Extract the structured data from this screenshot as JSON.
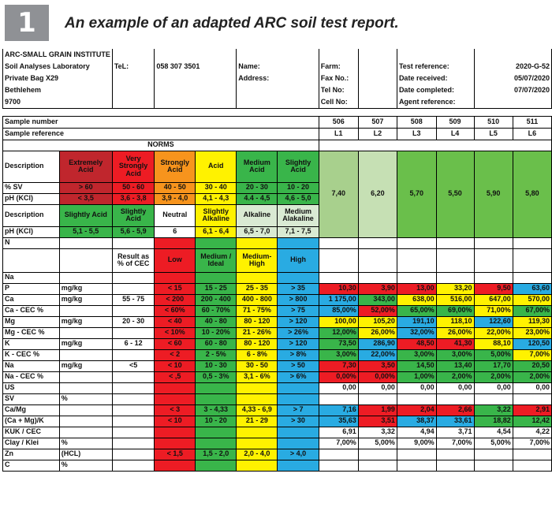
{
  "header": {
    "number": "1",
    "title": "An example of an adapted ARC soil test report."
  },
  "info": {
    "rows": [
      [
        "ARC-SMALL GRAIN INSTITUTE",
        "",
        "",
        "",
        "",
        "",
        "",
        ""
      ],
      [
        "Soil Analyses Laboratory",
        "TeL:",
        "058 307 3501",
        "Name:",
        "Farm:",
        "",
        "Test reference:",
        "2020-G-52"
      ],
      [
        "Private Bag X29",
        "",
        "",
        "Address:",
        "Fax No.:",
        "",
        "Date received:",
        "05/07/2020"
      ],
      [
        "Bethlehem",
        "",
        "",
        "",
        "Tel No:",
        "",
        "Date completed:",
        "07/07/2020"
      ],
      [
        "9700",
        "",
        "",
        "",
        "Cell No:",
        "",
        "Agent reference:",
        ""
      ]
    ]
  },
  "samples": {
    "number_label": "Sample number",
    "reference_label": "Sample reference",
    "numbers": [
      "506",
      "507",
      "508",
      "509",
      "510",
      "511"
    ],
    "references": [
      "L1",
      "L2",
      "L3",
      "L4",
      "L5",
      "L6"
    ],
    "ph_values": [
      "7,40",
      "6,20",
      "5,70",
      "5,50",
      "5,90",
      "5,80"
    ]
  },
  "norms": {
    "title": "NORMS",
    "description_label": "Description",
    "sv_label": "% SV",
    "ph_label": "pH (KCl)",
    "acid_desc": [
      "Extremely Acid",
      "Very Strongly Acid",
      "Strongly Acid",
      "Acid",
      "Medium Acid",
      "Slightly Acid"
    ],
    "acid_sv": [
      "> 60",
      "50 - 60",
      "40 - 50",
      "30 - 40",
      "20 - 30",
      "10 - 20"
    ],
    "acid_ph": [
      "< 3,5",
      "3,6 - 3,8",
      "3,9 - 4,0",
      "4,1 - 4,3",
      "4.4 - 4,5",
      "4,6 - 5,0"
    ],
    "alk_desc": [
      "Slightly Acid",
      "Slightly Acid",
      "Neutral",
      "Slightly Alkaline",
      "Alkaline",
      "Medium Alakaline"
    ],
    "alk_ph": [
      "5,1 - 5,5",
      "5,6 - 5,9",
      "6",
      "6,1 - 6,4",
      "6,5 - 7,0",
      "7,1 - 7,5"
    ]
  },
  "nutrients": {
    "result_header": "Result as % of CEC",
    "bands": [
      "Low",
      "Medium / Ideal",
      "Medium-High",
      "High"
    ],
    "rows": [
      {
        "name": "N",
        "unit": "",
        "cec": "",
        "low": "",
        "med": "",
        "mhigh": "",
        "high": "",
        "values": [
          "",
          "",
          "",
          "",
          "",
          ""
        ],
        "colors": [
          "",
          "",
          "",
          "",
          "",
          ""
        ]
      },
      {
        "name": "Na",
        "unit": "",
        "cec": "",
        "low": "",
        "med": "",
        "mhigh": "",
        "high": "",
        "values": [
          "",
          "",
          "",
          "",
          "",
          ""
        ],
        "colors": [
          "",
          "",
          "",
          "",
          "",
          ""
        ]
      },
      {
        "name": "P",
        "unit": "mg/kg",
        "cec": "",
        "low": "< 15",
        "med": "15 - 25",
        "mhigh": "25 - 35",
        "high": "> 35",
        "values": [
          "10,30",
          "3,90",
          "13,00",
          "33,20",
          "9,50",
          "63,60"
        ],
        "colors": [
          "red",
          "red",
          "red",
          "yel",
          "red",
          "blu"
        ]
      },
      {
        "name": "Ca",
        "unit": "mg/kg",
        "cec": "55 - 75",
        "low": "< 200",
        "med": "200 - 400",
        "mhigh": "400 - 800",
        "high": "> 800",
        "values": [
          "1 175,00",
          "343,00",
          "638,00",
          "516,00",
          "647,00",
          "570,00"
        ],
        "colors": [
          "blu",
          "grn",
          "yel",
          "yel",
          "yel",
          "yel"
        ]
      },
      {
        "name": "Ca - CEC %",
        "unit": "",
        "cec": "",
        "low": "< 60%",
        "med": "60 - 70%",
        "mhigh": "71 - 75%",
        "high": "> 75",
        "values": [
          "85,00%",
          "52,00%",
          "65,00%",
          "69,00%",
          "71,00%",
          "67,00%"
        ],
        "colors": [
          "blu",
          "red",
          "grn",
          "grn",
          "yel",
          "grn"
        ]
      },
      {
        "name": "Mg",
        "unit": "mg/kg",
        "cec": "20 - 30",
        "low": "< 40",
        "med": "40 - 80",
        "mhigh": "80 - 120",
        "high": "> 120",
        "values": [
          "100,00",
          "105,20",
          "191,10",
          "118,10",
          "122,60",
          "119,30"
        ],
        "colors": [
          "yel",
          "yel",
          "blu",
          "yel",
          "blu",
          "yel"
        ]
      },
      {
        "name": "Mg - CEC %",
        "unit": "",
        "cec": "",
        "low": "< 10%",
        "med": "10 - 20%",
        "mhigh": "21 - 26%",
        "high": "> 26%",
        "values": [
          "12,00%",
          "26,00%",
          "32,00%",
          "26,00%",
          "22,00%",
          "23,00%"
        ],
        "colors": [
          "grn",
          "yel",
          "blu",
          "yel",
          "yel",
          "yel"
        ]
      },
      {
        "name": "K",
        "unit": "mg/kg",
        "cec": "6 - 12",
        "low": "< 60",
        "med": "60 - 80",
        "mhigh": "80 - 120",
        "high": "> 120",
        "values": [
          "73,50",
          "286,90",
          "48,50",
          "41,30",
          "88,10",
          "120,50"
        ],
        "colors": [
          "grn",
          "blu",
          "red",
          "red",
          "yel",
          "blu"
        ]
      },
      {
        "name": "K - CEC %",
        "unit": "",
        "cec": "",
        "low": "< 2",
        "med": "2 - 5%",
        "mhigh": "6 - 8%",
        "high": "> 8%",
        "values": [
          "3,00%",
          "22,00%",
          "3,00%",
          "3,00%",
          "5,00%",
          "7,00%"
        ],
        "colors": [
          "grn",
          "blu",
          "grn",
          "grn",
          "grn",
          "yel"
        ]
      },
      {
        "name": "Na",
        "unit": "mg/kg",
        "cec": "<5",
        "low": "< 10",
        "med": "10 - 30",
        "mhigh": "30 - 50",
        "high": "> 50",
        "values": [
          "7,30",
          "3,50",
          "14,50",
          "13,40",
          "17,70",
          "20,50"
        ],
        "colors": [
          "red",
          "red",
          "grn",
          "grn",
          "grn",
          "grn"
        ]
      },
      {
        "name": "Na - CEC %",
        "unit": "",
        "cec": "",
        "low": "< ,5",
        "med": "0,5 - 3%",
        "mhigh": "3,1 - 6%",
        "high": "> 6%",
        "values": [
          "0,00%",
          "0,00%",
          "1,00%",
          "2,00%",
          "2,00%",
          "2,00%"
        ],
        "colors": [
          "red",
          "red",
          "grn",
          "grn",
          "grn",
          "grn"
        ]
      },
      {
        "name": "US",
        "unit": "",
        "cec": "",
        "low": "",
        "med": "",
        "mhigh": "",
        "high": "",
        "values": [
          "0,00",
          "0,00",
          "0,00",
          "0,00",
          "0,00",
          "0,00"
        ],
        "colors": [
          "",
          "",
          "",
          "",
          "",
          ""
        ]
      },
      {
        "name": "SV",
        "unit": "%",
        "cec": "",
        "low": "",
        "med": "",
        "mhigh": "",
        "high": "",
        "values": [
          "",
          "",
          "",
          "",
          "",
          ""
        ],
        "colors": [
          "",
          "",
          "",
          "",
          "",
          ""
        ]
      },
      {
        "name": "Ca/Mg",
        "unit": "",
        "cec": "",
        "low": "< 3",
        "med": "3 - 4,33",
        "mhigh": "4,33 - 6,9",
        "high": "> 7",
        "values": [
          "7,16",
          "1,99",
          "2,04",
          "2,66",
          "3,22",
          "2,91"
        ],
        "colors": [
          "blu",
          "red",
          "red",
          "red",
          "grn",
          "red"
        ]
      },
      {
        "name": "(Ca + Mg)/K",
        "unit": "",
        "cec": "",
        "low": "< 10",
        "med": "10 - 20",
        "mhigh": "21 - 29",
        "high": "> 30",
        "values": [
          "35,63",
          "3,51",
          "38,37",
          "33,61",
          "18,82",
          "12,42"
        ],
        "colors": [
          "blu",
          "red",
          "blu",
          "blu",
          "grn",
          "grn"
        ]
      },
      {
        "name": "KUK / CEC",
        "unit": "",
        "cec": "",
        "low": "",
        "med": "",
        "mhigh": "",
        "high": "",
        "values": [
          "6,91",
          "3,32",
          "4,94",
          "3,71",
          "4,54",
          "4,22"
        ],
        "colors": [
          "",
          "",
          "",
          "",
          "",
          ""
        ]
      },
      {
        "name": "Clay / Klei",
        "unit": "%",
        "cec": "",
        "low": "",
        "med": "",
        "mhigh": "",
        "high": "",
        "values": [
          "7,00%",
          "5,00%",
          "9,00%",
          "7,00%",
          "5,00%",
          "7,00%"
        ],
        "colors": [
          "",
          "",
          "",
          "",
          "",
          ""
        ]
      },
      {
        "name": "Zn",
        "unit": "(HCL)",
        "cec": "",
        "low": "< 1,5",
        "med": "1,5 - 2,0",
        "mhigh": "2,0 - 4,0",
        "high": "> 4,0",
        "values": [
          "",
          "",
          "",
          "",
          "",
          ""
        ],
        "colors": [
          "",
          "",
          "",
          "",
          "",
          ""
        ]
      },
      {
        "name": "C",
        "unit": "%",
        "cec": "",
        "low": "",
        "med": "",
        "mhigh": "",
        "high": "",
        "values": [
          "",
          "",
          "",
          "",
          "",
          ""
        ],
        "colors": [
          "",
          "",
          "",
          "",
          "",
          ""
        ]
      }
    ]
  }
}
